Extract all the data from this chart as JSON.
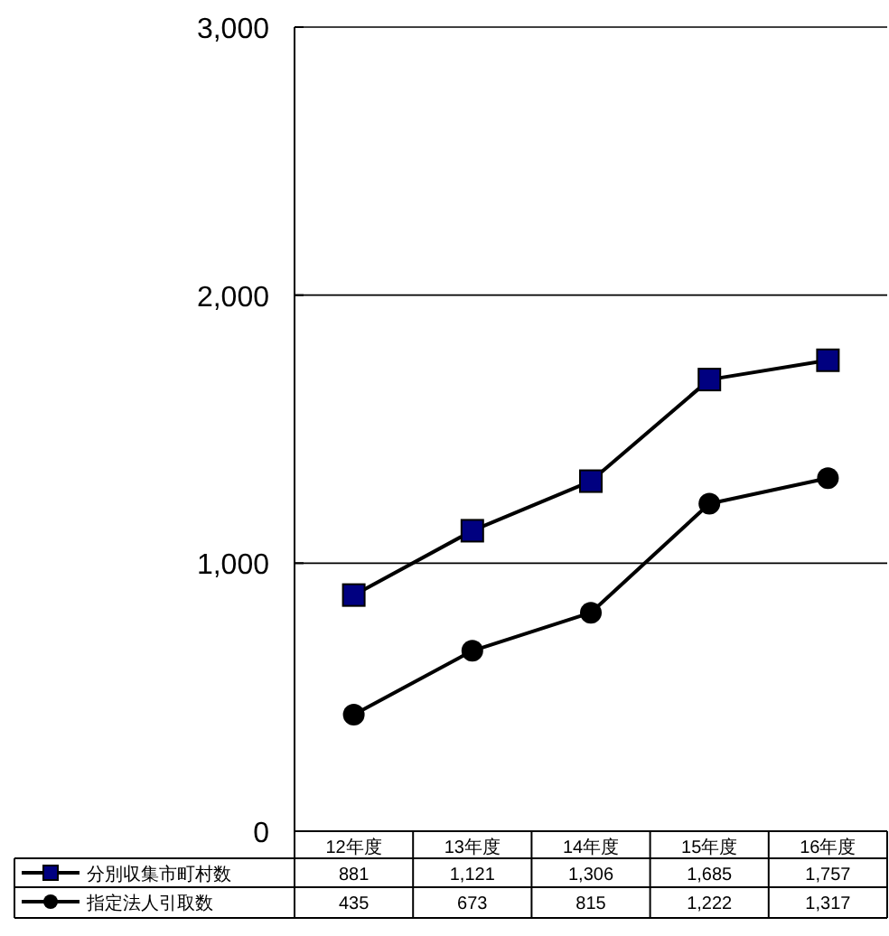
{
  "chart_data": {
    "type": "line",
    "categories": [
      "12年度",
      "13年度",
      "14年度",
      "15年度",
      "16年度"
    ],
    "series": [
      {
        "name": "分別収集市町村数",
        "color": "#000080",
        "marker": "square",
        "values": [
          881,
          1121,
          1306,
          1685,
          1757
        ],
        "value_labels": [
          "881",
          "1,121",
          "1,306",
          "1,685",
          "1,757"
        ]
      },
      {
        "name": "指定法人引取数",
        "color": "#000000",
        "marker": "circle",
        "values": [
          435,
          673,
          815,
          1222,
          1317
        ],
        "value_labels": [
          "435",
          "673",
          "815",
          "1,222",
          "1,317"
        ]
      }
    ],
    "ylim": [
      0,
      3000
    ],
    "yticks": [
      {
        "value": 0,
        "label": "0"
      },
      {
        "value": 1000,
        "label": "1,000"
      },
      {
        "value": 2000,
        "label": "2,000"
      },
      {
        "value": 3000,
        "label": "3,000"
      }
    ],
    "grid": "y",
    "legend": "bottom",
    "line_style": "solid"
  }
}
